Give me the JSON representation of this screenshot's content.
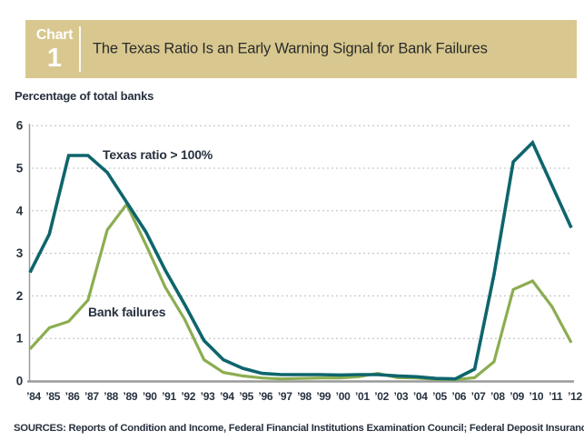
{
  "header": {
    "chart_label": "Chart",
    "chart_number": "1",
    "title": "The Texas Ratio Is an Early Warning Signal for Bank Failures"
  },
  "axis_units_label": "Percentage of total banks",
  "source_note": "SOURCES: Reports of Condition and Income, Federal Financial Institutions Examination Council; Federal Deposit Insurance Corp.",
  "colors": {
    "header_band": "#d8c88f",
    "header_text": "#ffffff",
    "title_text": "#2b2b2b",
    "chart_text": "#27313f",
    "texas_ratio_line": "#0e656c",
    "bank_failures_line": "#8cad50",
    "gridline": "#bcbcbc",
    "axis_line": "#9a9a9a"
  },
  "chart_data": {
    "type": "line",
    "title": "The Texas Ratio Is an Early Warning Signal for Bank Failures",
    "ylabel": "Percentage of total banks",
    "xlabel": "",
    "ylim": [
      0,
      6
    ],
    "yticks": [
      0,
      1,
      2,
      3,
      4,
      5,
      6
    ],
    "grid": "horizontal dashed at y=1..6, solid baseline at 0",
    "legend_position": "inline text annotations",
    "x": [
      "’84",
      "’85",
      "’86",
      "’87",
      "’88",
      "’89",
      "’90",
      "’91",
      "’92",
      "’93",
      "’94",
      "’95",
      "’96",
      "’97",
      "’98",
      "’99",
      "’00",
      "’01",
      "’02",
      "’03",
      "’04",
      "’05",
      "’06",
      "’07",
      "’08",
      "’09",
      "’10",
      "’11",
      "’12"
    ],
    "series": [
      {
        "name": "Texas ratio > 100%",
        "color": "#0e656c",
        "values": [
          2.55,
          3.45,
          5.3,
          5.3,
          4.9,
          4.2,
          3.5,
          2.6,
          1.8,
          0.95,
          0.5,
          0.3,
          0.18,
          0.15,
          0.15,
          0.15,
          0.14,
          0.15,
          0.15,
          0.12,
          0.1,
          0.06,
          0.05,
          0.28,
          2.5,
          5.15,
          5.6,
          4.6,
          3.6
        ]
      },
      {
        "name": "Bank failures",
        "color": "#8cad50",
        "values": [
          0.75,
          1.25,
          1.4,
          1.9,
          3.55,
          4.15,
          3.2,
          2.2,
          1.45,
          0.5,
          0.2,
          0.12,
          0.07,
          0.05,
          0.06,
          0.07,
          0.07,
          0.1,
          0.18,
          0.08,
          0.07,
          0.04,
          0.03,
          0.08,
          0.45,
          2.15,
          2.35,
          1.75,
          0.9
        ]
      }
    ]
  }
}
